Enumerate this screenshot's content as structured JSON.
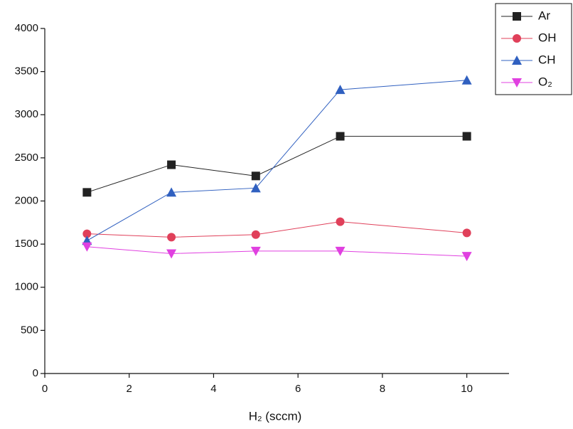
{
  "chart_data": {
    "type": "line",
    "x_label": "H₂ (sccm)",
    "x": [
      1,
      3,
      5,
      7,
      10
    ],
    "series": [
      {
        "name": "Ar",
        "color": "#222222",
        "marker": "square",
        "values": [
          2100,
          2420,
          2290,
          2750,
          2750
        ]
      },
      {
        "name": "OH",
        "color": "#e0405a",
        "marker": "circle",
        "values": [
          1620,
          1580,
          1610,
          1760,
          1630
        ]
      },
      {
        "name": "CH",
        "color": "#3060c0",
        "marker": "triangle-up",
        "values": [
          1540,
          2100,
          2150,
          3290,
          3400
        ]
      },
      {
        "name": "O₂",
        "color": "#e040e0",
        "marker": "triangle-down",
        "values": [
          1470,
          1390,
          1420,
          1420,
          1360
        ]
      }
    ],
    "xlim": [
      0,
      11
    ],
    "xticks": [
      0,
      2,
      4,
      6,
      8,
      10
    ],
    "ylim": [
      0,
      4000
    ],
    "yticks": [
      0,
      500,
      1000,
      1500,
      2000,
      2500,
      3000,
      3500,
      4000
    ],
    "legend": "top-right"
  }
}
